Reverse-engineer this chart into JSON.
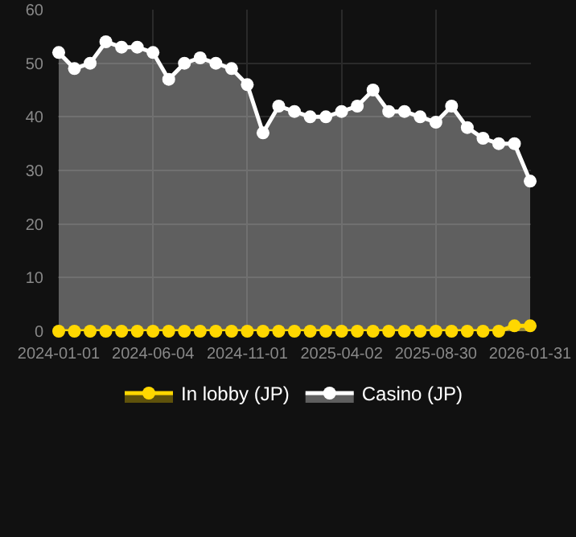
{
  "chart_data": {
    "type": "area",
    "categories": [
      "2024-01-01",
      null,
      null,
      null,
      null,
      null,
      "2024-06-04",
      null,
      null,
      null,
      null,
      null,
      "2024-11-01",
      null,
      null,
      null,
      null,
      null,
      "2025-04-02",
      null,
      null,
      null,
      null,
      null,
      "2025-08-30",
      null,
      null,
      null,
      null,
      null,
      "2026-01-31"
    ],
    "series": [
      {
        "name": "In lobby (JP)",
        "color": "#ffd700",
        "values": [
          0,
          0,
          0,
          0,
          0,
          0,
          0,
          0,
          0,
          0,
          0,
          0,
          0,
          0,
          0,
          0,
          0,
          0,
          0,
          0,
          0,
          0,
          0,
          0,
          0,
          0,
          0,
          0,
          0,
          1,
          1
        ]
      },
      {
        "name": "Casino (JP)",
        "color": "#ffffff",
        "values": [
          52,
          49,
          50,
          54,
          53,
          53,
          52,
          47,
          50,
          51,
          50,
          49,
          46,
          37,
          42,
          41,
          40,
          40,
          41,
          42,
          45,
          41,
          41,
          40,
          39,
          42,
          38,
          36,
          35,
          35,
          28
        ]
      }
    ],
    "ylim": [
      0,
      60
    ],
    "yticks": [
      0,
      10,
      20,
      30,
      40,
      50,
      60
    ],
    "grid": true,
    "legend": "bottom",
    "marker": "circle",
    "line_style": "solid"
  }
}
